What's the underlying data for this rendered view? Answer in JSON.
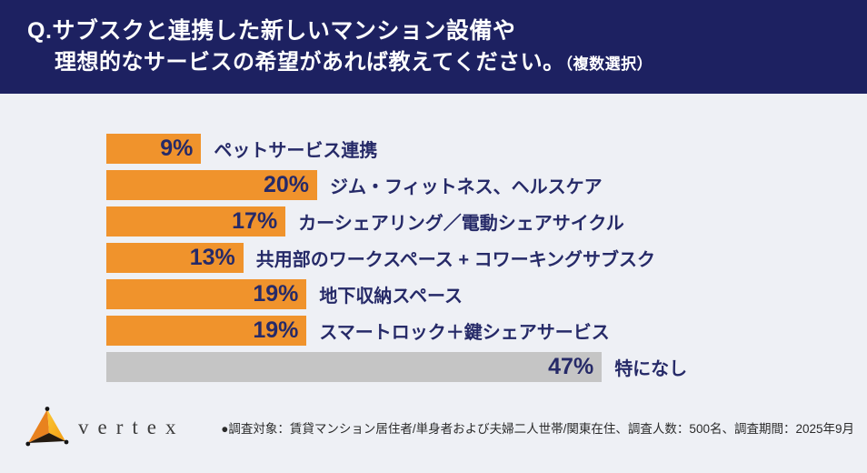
{
  "header": {
    "line1": "Q.サブスクと連携した新しいマンション設備や",
    "line2": "理想的なサービスの希望があれば教えてください。",
    "line2_note": "（複数選択）"
  },
  "chart_data": {
    "type": "bar",
    "orientation": "horizontal",
    "unit": "%",
    "categories": [
      "ペットサービス連携",
      "ジム・フィットネス、ヘルスケア",
      "カーシェアリング／電動シェアサイクル",
      "共用部のワークスペース + コワーキングサブスク",
      "地下収納スペース",
      "スマートロック＋鍵シェアサービス",
      "特になし"
    ],
    "values": [
      9,
      20,
      17,
      13,
      19,
      19,
      47
    ],
    "value_labels": [
      "9%",
      "20%",
      "17%",
      "13%",
      "19%",
      "19%",
      "47%"
    ],
    "bar_colors": [
      "#f0932c",
      "#f0932c",
      "#f0932c",
      "#f0932c",
      "#f0932c",
      "#f0932c",
      "#c5c5c5"
    ],
    "title": "",
    "xlabel": "",
    "ylabel": "",
    "xlim": [
      0,
      50
    ],
    "grid": false,
    "legend": false
  },
  "footer": {
    "logo_text": "vertex",
    "survey_note": "●調査対象：賃貸マンション居住者/単身者および夫婦二人世帯/関東在住、調査人数：500名、調査期間：2025年9月"
  },
  "colors": {
    "header_bg": "#1d2161",
    "page_bg": "#eef0f5",
    "accent_orange": "#f0932c",
    "bar_gray": "#c5c5c5",
    "text_navy": "#262a68",
    "logo_orange_dark": "#e8821e",
    "logo_orange_light": "#f9b32b",
    "logo_black": "#231a10"
  }
}
